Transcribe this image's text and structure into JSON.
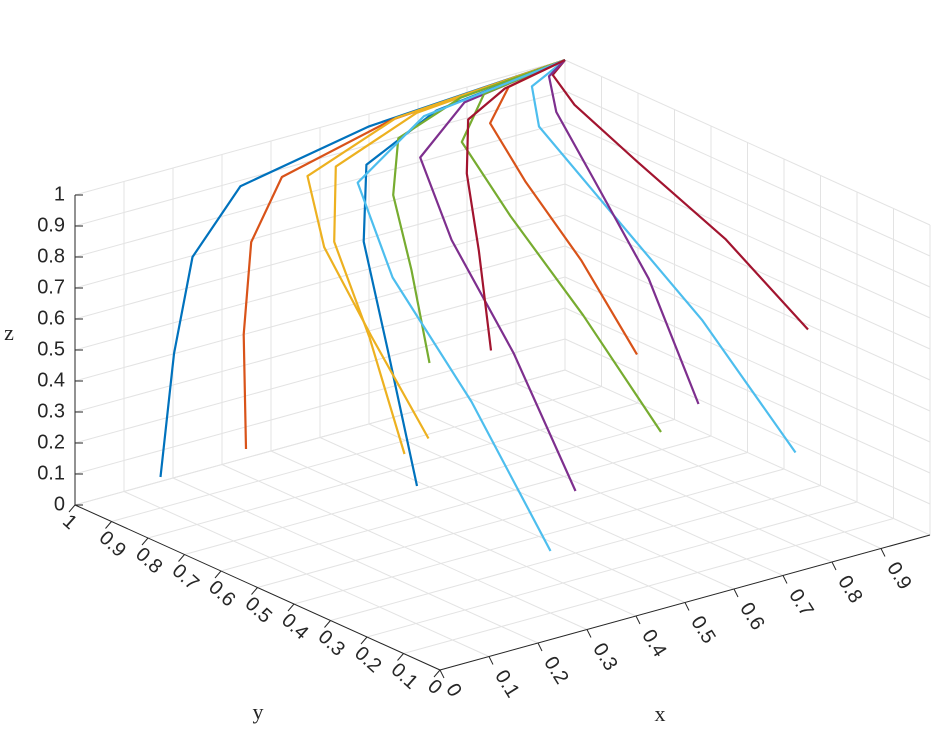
{
  "chart_data": {
    "type": "line3d",
    "x_label": "x",
    "y_label": "y",
    "z_label": "z",
    "xlim": [
      0,
      1
    ],
    "ylim": [
      0,
      1
    ],
    "zlim": [
      0,
      1
    ],
    "xticks": [
      0,
      0.1,
      0.2,
      0.3,
      0.4,
      0.5,
      0.6,
      0.7,
      0.8,
      0.9
    ],
    "yticks": [
      0,
      0.1,
      0.2,
      0.3,
      0.4,
      0.5,
      0.6,
      0.7,
      0.8,
      0.9,
      1
    ],
    "zticks": [
      0,
      0.1,
      0.2,
      0.3,
      0.4,
      0.5,
      0.6,
      0.7,
      0.8,
      0.9,
      1
    ],
    "grid": true,
    "series": [
      {
        "color": "#0072BD",
        "x": [
          0.1,
          0.15,
          0.21,
          0.33,
          0.6,
          1
        ],
        "y": [
          0.9,
          0.93,
          0.96,
          0.99,
          1,
          1
        ],
        "z": [
          0.1,
          0.46,
          0.73,
          0.89,
          0.96,
          1
        ]
      },
      {
        "color": "#D95319",
        "x": [
          0.2,
          0.24,
          0.3,
          0.4,
          0.64,
          1
        ],
        "y": [
          0.8,
          0.86,
          0.92,
          0.97,
          0.99,
          1
        ],
        "z": [
          0.2,
          0.52,
          0.76,
          0.9,
          0.97,
          1
        ]
      },
      {
        "color": "#EDB120",
        "x": [
          0.3,
          0.34,
          0.38,
          0.48,
          0.69,
          1
        ],
        "y": [
          0.5,
          0.65,
          0.8,
          0.93,
          0.99,
          1
        ],
        "z": [
          0.3,
          0.58,
          0.79,
          0.92,
          0.97,
          1
        ]
      },
      {
        "color": "#7E2F8E",
        "x": [
          0.5,
          0.53,
          0.56,
          0.63,
          0.78,
          1
        ],
        "y": [
          0.3,
          0.51,
          0.72,
          0.9,
          0.98,
          1
        ],
        "z": [
          0.2,
          0.52,
          0.76,
          0.9,
          0.97,
          1
        ]
      },
      {
        "color": "#77AC30",
        "x": [
          0.6,
          0.62,
          0.65,
          0.7,
          0.82,
          1
        ],
        "y": [
          0.2,
          0.44,
          0.68,
          0.88,
          0.98,
          1
        ],
        "z": [
          0.4,
          0.64,
          0.82,
          0.93,
          0.98,
          1
        ]
      },
      {
        "color": "#4DBEEE",
        "x": [
          0.8,
          0.81,
          0.82,
          0.85,
          0.91,
          1
        ],
        "y": [
          0.1,
          0.37,
          0.64,
          0.87,
          0.97,
          1
        ],
        "z": [
          0.3,
          0.58,
          0.79,
          0.92,
          0.97,
          1
        ]
      },
      {
        "color": "#A2142F",
        "x": [
          0.9,
          0.91,
          0.91,
          0.93,
          0.96,
          1
        ],
        "y": [
          0.2,
          0.44,
          0.68,
          0.88,
          0.98,
          1
        ],
        "z": [
          0.6,
          0.76,
          0.88,
          0.95,
          0.98,
          1
        ]
      },
      {
        "color": "#0072BD",
        "x": [
          0.4,
          0.43,
          0.47,
          0.55,
          0.73,
          1
        ],
        "y": [
          0.6,
          0.72,
          0.84,
          0.94,
          0.99,
          1
        ],
        "z": [
          0.1,
          0.46,
          0.73,
          0.89,
          0.96,
          1
        ]
      },
      {
        "color": "#D95319",
        "x": [
          0.7,
          0.72,
          0.74,
          0.78,
          0.87,
          1
        ],
        "y": [
          0.4,
          0.58,
          0.76,
          0.91,
          0.98,
          1
        ],
        "z": [
          0.5,
          0.7,
          0.85,
          0.94,
          0.98,
          1
        ]
      },
      {
        "color": "#EDB120",
        "x": [
          0.2,
          0.24,
          0.3,
          0.4,
          0.64,
          1
        ],
        "y": [
          0.3,
          0.51,
          0.72,
          0.9,
          0.98,
          1
        ],
        "z": [
          0.5,
          0.7,
          0.85,
          0.94,
          0.98,
          1
        ]
      },
      {
        "color": "#7E2F8E",
        "x": [
          0.9,
          0.91,
          0.91,
          0.93,
          0.96,
          1
        ],
        "y": [
          0.5,
          0.65,
          0.8,
          0.93,
          0.99,
          1
        ],
        "z": [
          0.2,
          0.52,
          0.76,
          0.9,
          0.97,
          1
        ]
      },
      {
        "color": "#77AC30",
        "x": [
          0.5,
          0.53,
          0.56,
          0.63,
          0.78,
          1
        ],
        "y": [
          0.7,
          0.79,
          0.88,
          0.96,
          0.99,
          1
        ],
        "z": [
          0.4,
          0.64,
          0.82,
          0.93,
          0.98,
          1
        ]
      },
      {
        "color": "#4DBEEE",
        "x": [
          0.3,
          0.34,
          0.38,
          0.48,
          0.69,
          1
        ],
        "y": [
          0.1,
          0.37,
          0.64,
          0.87,
          0.97,
          1
        ],
        "z": [
          0.2,
          0.52,
          0.76,
          0.9,
          0.97,
          1
        ]
      },
      {
        "color": "#A2142F",
        "x": [
          0.7,
          0.72,
          0.74,
          0.78,
          0.87,
          1
        ],
        "y": [
          0.8,
          0.86,
          0.92,
          0.97,
          0.99,
          1
        ],
        "z": [
          0.3,
          0.58,
          0.79,
          0.92,
          0.97,
          1
        ]
      }
    ]
  }
}
